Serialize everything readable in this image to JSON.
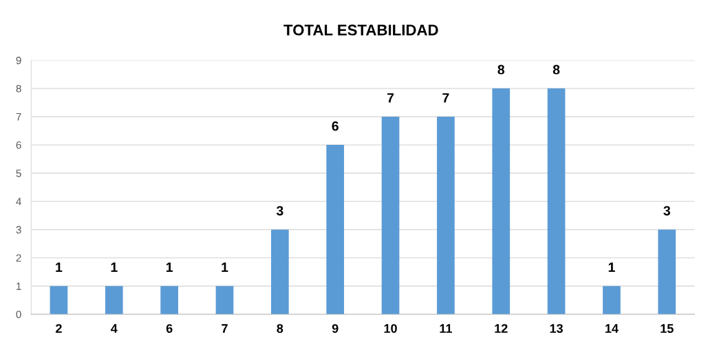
{
  "chart_data": {
    "type": "bar",
    "title": "TOTAL ESTABILIDAD",
    "categories": [
      "2",
      "4",
      "6",
      "7",
      "8",
      "9",
      "10",
      "11",
      "12",
      "13",
      "14",
      "15"
    ],
    "values": [
      1,
      1,
      1,
      1,
      3,
      6,
      7,
      7,
      8,
      8,
      1,
      3
    ],
    "color": "#5b9bd5",
    "ylim": [
      0,
      9
    ],
    "yticks": [
      0,
      1,
      2,
      3,
      4,
      5,
      6,
      7,
      8,
      9
    ],
    "grid": "y",
    "data_labels": true
  }
}
